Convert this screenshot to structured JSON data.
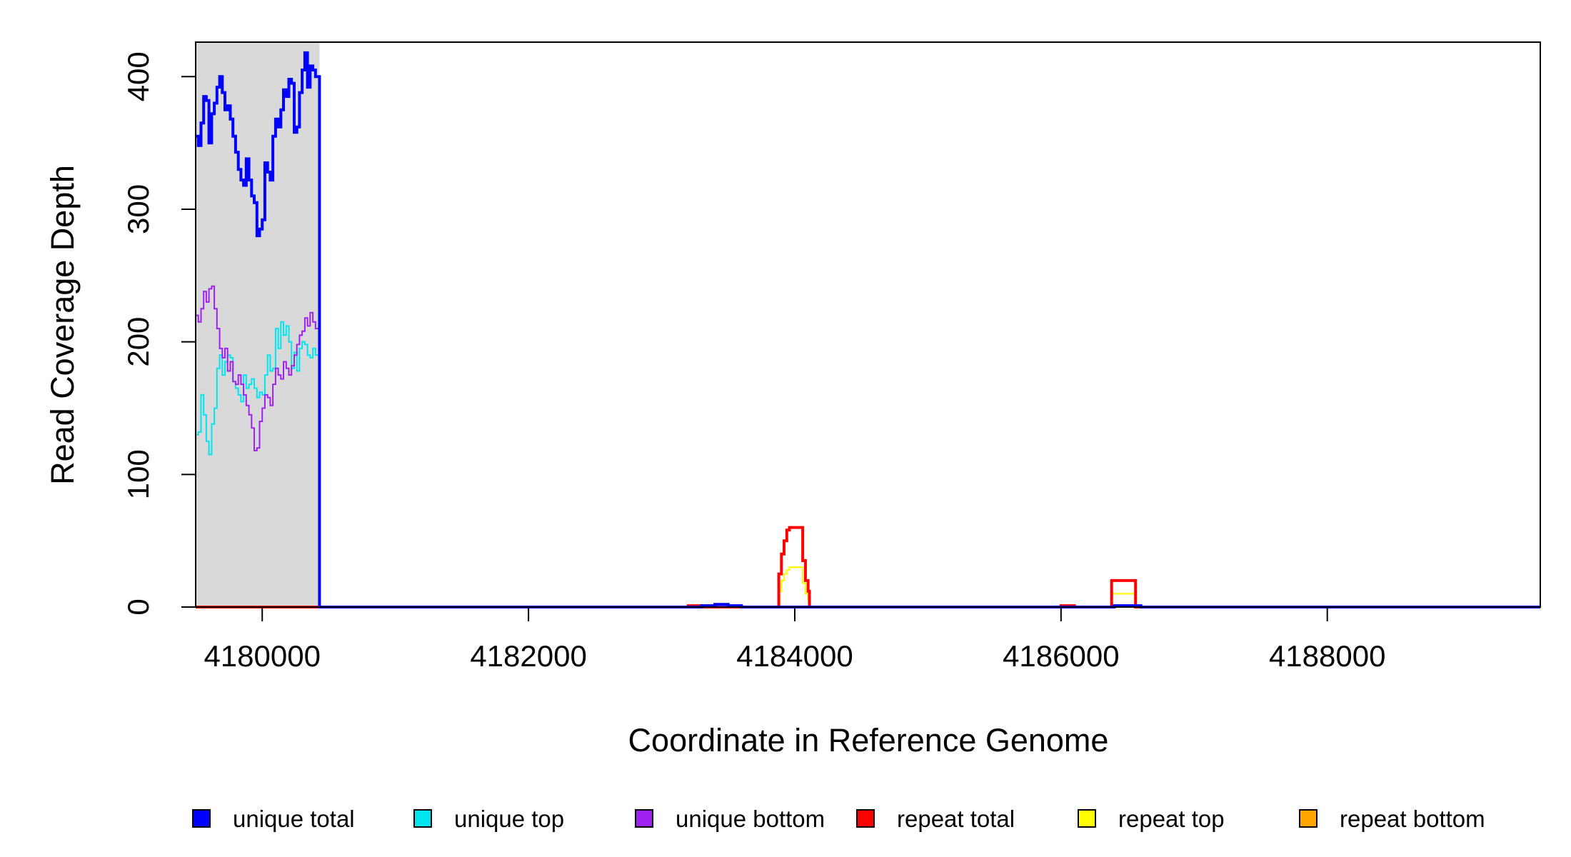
{
  "chart_data": {
    "type": "line",
    "title": "",
    "xlabel": "Coordinate in Reference Genome",
    "ylabel": "Read Coverage Depth",
    "xlim": [
      4179500,
      4189600
    ],
    "ylim": [
      0,
      426
    ],
    "x_ticks": [
      4180000,
      4182000,
      4184000,
      4186000,
      4188000
    ],
    "x_tick_labels": [
      "4180000",
      "4182000",
      "4184000",
      "4186000",
      "4188000"
    ],
    "y_ticks": [
      0,
      100,
      200,
      300,
      400
    ],
    "y_tick_labels": [
      "0",
      "100",
      "200",
      "300",
      "400"
    ],
    "grid": false,
    "legend_position": "bottom",
    "highlight_region": {
      "x_start": 4179500,
      "x_end": 4180430,
      "color": "#d9d9d9"
    },
    "series": [
      {
        "name": "unique total",
        "color": "#0000ff",
        "line_width": 4,
        "points": [
          [
            4179500,
            355
          ],
          [
            4179520,
            348
          ],
          [
            4179540,
            365
          ],
          [
            4179560,
            385
          ],
          [
            4179580,
            382
          ],
          [
            4179600,
            350
          ],
          [
            4179620,
            372
          ],
          [
            4179640,
            380
          ],
          [
            4179660,
            392
          ],
          [
            4179680,
            400
          ],
          [
            4179700,
            388
          ],
          [
            4179720,
            375
          ],
          [
            4179740,
            378
          ],
          [
            4179760,
            368
          ],
          [
            4179780,
            355
          ],
          [
            4179800,
            343
          ],
          [
            4179820,
            330
          ],
          [
            4179840,
            322
          ],
          [
            4179860,
            318
          ],
          [
            4179880,
            338
          ],
          [
            4179900,
            322
          ],
          [
            4179920,
            310
          ],
          [
            4179940,
            305
          ],
          [
            4179960,
            280
          ],
          [
            4179980,
            285
          ],
          [
            4180000,
            292
          ],
          [
            4180020,
            335
          ],
          [
            4180040,
            328
          ],
          [
            4180060,
            322
          ],
          [
            4180080,
            355
          ],
          [
            4180100,
            368
          ],
          [
            4180120,
            362
          ],
          [
            4180140,
            375
          ],
          [
            4180160,
            390
          ],
          [
            4180180,
            385
          ],
          [
            4180200,
            398
          ],
          [
            4180220,
            395
          ],
          [
            4180240,
            358
          ],
          [
            4180260,
            362
          ],
          [
            4180280,
            388
          ],
          [
            4180300,
            405
          ],
          [
            4180320,
            418
          ],
          [
            4180340,
            392
          ],
          [
            4180360,
            408
          ],
          [
            4180380,
            405
          ],
          [
            4180400,
            400
          ],
          [
            4180430,
            0
          ],
          [
            4180500,
            0
          ],
          [
            4183200,
            0
          ],
          [
            4183300,
            1
          ],
          [
            4183400,
            2
          ],
          [
            4183500,
            1
          ],
          [
            4183600,
            0
          ],
          [
            4183900,
            0
          ],
          [
            4184000,
            0
          ],
          [
            4184100,
            0
          ],
          [
            4186300,
            0
          ],
          [
            4186400,
            1
          ],
          [
            4186500,
            1
          ],
          [
            4186600,
            0
          ],
          [
            4189600,
            0
          ]
        ]
      },
      {
        "name": "unique top",
        "color": "#00e5ee",
        "line_width": 2,
        "points": [
          [
            4179500,
            130
          ],
          [
            4179520,
            132
          ],
          [
            4179540,
            160
          ],
          [
            4179560,
            145
          ],
          [
            4179580,
            125
          ],
          [
            4179600,
            115
          ],
          [
            4179620,
            138
          ],
          [
            4179640,
            150
          ],
          [
            4179660,
            180
          ],
          [
            4179680,
            190
          ],
          [
            4179700,
            175
          ],
          [
            4179720,
            185
          ],
          [
            4179740,
            190
          ],
          [
            4179760,
            188
          ],
          [
            4179780,
            170
          ],
          [
            4179800,
            165
          ],
          [
            4179820,
            160
          ],
          [
            4179840,
            155
          ],
          [
            4179860,
            175
          ],
          [
            4179880,
            165
          ],
          [
            4179900,
            168
          ],
          [
            4179920,
            172
          ],
          [
            4179940,
            165
          ],
          [
            4179960,
            158
          ],
          [
            4179980,
            162
          ],
          [
            4180000,
            160
          ],
          [
            4180020,
            175
          ],
          [
            4180040,
            190
          ],
          [
            4180060,
            178
          ],
          [
            4180080,
            180
          ],
          [
            4180100,
            210
          ],
          [
            4180120,
            195
          ],
          [
            4180140,
            215
          ],
          [
            4180160,
            205
          ],
          [
            4180180,
            212
          ],
          [
            4180200,
            200
          ],
          [
            4180220,
            180
          ],
          [
            4180240,
            192
          ],
          [
            4180260,
            178
          ],
          [
            4180280,
            195
          ],
          [
            4180300,
            200
          ],
          [
            4180320,
            198
          ],
          [
            4180340,
            190
          ],
          [
            4180360,
            188
          ],
          [
            4180380,
            195
          ],
          [
            4180400,
            190
          ],
          [
            4180430,
            0
          ],
          [
            4180500,
            0
          ],
          [
            4183200,
            0
          ],
          [
            4183400,
            1
          ],
          [
            4183600,
            0
          ],
          [
            4186300,
            0
          ],
          [
            4186450,
            1
          ],
          [
            4186600,
            0
          ],
          [
            4189600,
            0
          ]
        ]
      },
      {
        "name": "unique bottom",
        "color": "#a020f0",
        "line_width": 2,
        "points": [
          [
            4179500,
            220
          ],
          [
            4179520,
            215
          ],
          [
            4179540,
            225
          ],
          [
            4179560,
            238
          ],
          [
            4179580,
            230
          ],
          [
            4179600,
            240
          ],
          [
            4179620,
            242
          ],
          [
            4179640,
            225
          ],
          [
            4179660,
            210
          ],
          [
            4179680,
            195
          ],
          [
            4179700,
            188
          ],
          [
            4179720,
            195
          ],
          [
            4179740,
            178
          ],
          [
            4179760,
            185
          ],
          [
            4179780,
            170
          ],
          [
            4179800,
            168
          ],
          [
            4179820,
            175
          ],
          [
            4179840,
            168
          ],
          [
            4179860,
            160
          ],
          [
            4179880,
            152
          ],
          [
            4179900,
            145
          ],
          [
            4179920,
            135
          ],
          [
            4179940,
            118
          ],
          [
            4179960,
            120
          ],
          [
            4179980,
            140
          ],
          [
            4180000,
            150
          ],
          [
            4180020,
            160
          ],
          [
            4180040,
            158
          ],
          [
            4180060,
            152
          ],
          [
            4180080,
            168
          ],
          [
            4180100,
            180
          ],
          [
            4180120,
            175
          ],
          [
            4180140,
            172
          ],
          [
            4180160,
            185
          ],
          [
            4180180,
            180
          ],
          [
            4180200,
            175
          ],
          [
            4180220,
            182
          ],
          [
            4180240,
            190
          ],
          [
            4180260,
            198
          ],
          [
            4180280,
            205
          ],
          [
            4180300,
            208
          ],
          [
            4180320,
            218
          ],
          [
            4180340,
            212
          ],
          [
            4180360,
            222
          ],
          [
            4180380,
            215
          ],
          [
            4180400,
            210
          ],
          [
            4180430,
            0
          ],
          [
            4180500,
            0
          ],
          [
            4183200,
            0
          ],
          [
            4183400,
            1
          ],
          [
            4183600,
            0
          ],
          [
            4186300,
            0
          ],
          [
            4186450,
            1
          ],
          [
            4186600,
            0
          ],
          [
            4189600,
            0
          ]
        ]
      },
      {
        "name": "repeat total",
        "color": "#ff0000",
        "line_width": 4,
        "points": [
          [
            4179500,
            0
          ],
          [
            4183100,
            0
          ],
          [
            4183200,
            1
          ],
          [
            4183300,
            0
          ],
          [
            4183870,
            0
          ],
          [
            4183880,
            25
          ],
          [
            4183900,
            40
          ],
          [
            4183920,
            50
          ],
          [
            4183940,
            58
          ],
          [
            4183960,
            60
          ],
          [
            4184000,
            60
          ],
          [
            4184040,
            60
          ],
          [
            4184060,
            35
          ],
          [
            4184080,
            20
          ],
          [
            4184100,
            12
          ],
          [
            4184110,
            0
          ],
          [
            4185900,
            0
          ],
          [
            4186000,
            1
          ],
          [
            4186100,
            0
          ],
          [
            4186350,
            0
          ],
          [
            4186380,
            20
          ],
          [
            4186540,
            20
          ],
          [
            4186560,
            0
          ],
          [
            4189600,
            0
          ]
        ]
      },
      {
        "name": "repeat top",
        "color": "#ffff00",
        "line_width": 2,
        "points": [
          [
            4179500,
            0
          ],
          [
            4183870,
            0
          ],
          [
            4183880,
            12
          ],
          [
            4183900,
            20
          ],
          [
            4183920,
            25
          ],
          [
            4183940,
            28
          ],
          [
            4183960,
            30
          ],
          [
            4184040,
            30
          ],
          [
            4184060,
            18
          ],
          [
            4184080,
            10
          ],
          [
            4184100,
            5
          ],
          [
            4184110,
            0
          ],
          [
            4186350,
            0
          ],
          [
            4186380,
            10
          ],
          [
            4186540,
            10
          ],
          [
            4186560,
            0
          ],
          [
            4189600,
            0
          ]
        ]
      },
      {
        "name": "repeat bottom",
        "color": "#ffa500",
        "line_width": 2,
        "points": [
          [
            4179500,
            0
          ],
          [
            4183870,
            0
          ],
          [
            4183880,
            12
          ],
          [
            4183900,
            20
          ],
          [
            4183920,
            25
          ],
          [
            4183940,
            28
          ],
          [
            4183960,
            30
          ],
          [
            4184040,
            30
          ],
          [
            4184060,
            18
          ],
          [
            4184080,
            10
          ],
          [
            4184100,
            5
          ],
          [
            4184110,
            0
          ],
          [
            4186350,
            0
          ],
          [
            4186380,
            10
          ],
          [
            4186540,
            10
          ],
          [
            4186560,
            0
          ],
          [
            4189600,
            0
          ]
        ]
      }
    ]
  }
}
